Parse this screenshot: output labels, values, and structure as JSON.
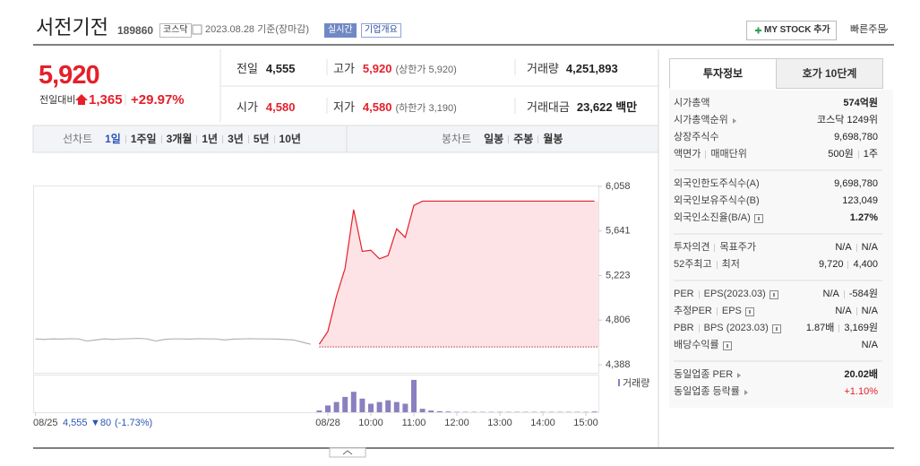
{
  "header": {
    "name": "서전기전",
    "code": "189860",
    "market": "코스닥",
    "date": "2023.08.28 기준(장마감)",
    "realtime": "실시간",
    "overview": "기업개요",
    "mystock": "MY STOCK 추가",
    "quick_order": "빠른주문"
  },
  "price": {
    "current": "5,920",
    "change_label": "전일대비",
    "change": "1,365",
    "change_rate": "+29.97%"
  },
  "summary": {
    "rows": [
      [
        {
          "label": "전일",
          "value": "4,555"
        },
        {
          "label": "고가",
          "value": "5,920",
          "note": "(상한가 5,920)",
          "color": "#e4202b"
        },
        {
          "label": "거래량",
          "value": "4,251,893"
        }
      ],
      [
        {
          "label": "시가",
          "value": "4,580",
          "color": "#e4202b"
        },
        {
          "label": "저가",
          "value": "4,580",
          "note": "(하한가 3,190)",
          "color": "#e4202b"
        },
        {
          "label": "거래대금",
          "value": "23,622 백만"
        }
      ]
    ]
  },
  "tabs": {
    "line_label": "선차트",
    "line": [
      "1일",
      "1주일",
      "3개월",
      "1년",
      "3년",
      "5년",
      "10년"
    ],
    "active": 0,
    "candle_label": "봉차트",
    "candle": [
      "일봉",
      "주봉",
      "월봉"
    ]
  },
  "chart": {
    "type": "line",
    "ylim": [
      4388,
      6058
    ],
    "yticks": [
      {
        "value": 6058,
        "label": "6,058"
      },
      {
        "value": 5641,
        "label": "5,641"
      },
      {
        "value": 5223,
        "label": "5,223"
      },
      {
        "value": 4806,
        "label": "4,806"
      },
      {
        "value": 4388,
        "label": "4,388"
      }
    ],
    "xticks": [
      {
        "value": 0,
        "label": "08/25"
      },
      {
        "value": 34,
        "label": "08/28"
      },
      {
        "value": 39,
        "label": "10:00"
      },
      {
        "value": 44,
        "label": "11:00"
      },
      {
        "value": 49,
        "label": "12:00"
      },
      {
        "value": 54,
        "label": "13:00"
      },
      {
        "value": 59,
        "label": "14:00"
      },
      {
        "value": 64,
        "label": "15:00"
      }
    ],
    "reference": 4555,
    "fill": "#fde3e5",
    "series": [
      {
        "color": "#b4b4b4",
        "values": [
          4630,
          4625,
          4630,
          4628,
          4632,
          4630,
          4610,
          4620,
          4630,
          4625,
          4630,
          4632,
          4635,
          4630,
          4610,
          4625,
          4630,
          4630,
          4628,
          4632,
          4630,
          4630,
          4620,
          4628,
          4630,
          4632,
          4630,
          4630,
          4628,
          4625,
          4620,
          4600,
          4580,
          null,
          null,
          null,
          null,
          null,
          null,
          null,
          null,
          null,
          null,
          null,
          null,
          null,
          null,
          null,
          null,
          null,
          null,
          null,
          null,
          null,
          null,
          null,
          null,
          null,
          null,
          null,
          null,
          null,
          null,
          null,
          null,
          null
        ]
      },
      {
        "color": "#e4202b",
        "values": [
          null,
          null,
          null,
          null,
          null,
          null,
          null,
          null,
          null,
          null,
          null,
          null,
          null,
          null,
          null,
          null,
          null,
          null,
          null,
          null,
          null,
          null,
          null,
          null,
          null,
          null,
          null,
          null,
          null,
          null,
          null,
          null,
          null,
          4580,
          4700,
          5030,
          5290,
          5840,
          5450,
          5460,
          5380,
          5410,
          5660,
          5580,
          5880,
          5920,
          5920,
          5920,
          5920,
          5920,
          5920,
          5920,
          5920,
          5920,
          5920,
          5920,
          5920,
          5920,
          5920,
          5920,
          5920,
          5920,
          5920,
          5920,
          5920,
          5920
        ]
      }
    ],
    "volume": {
      "label": "거래량",
      "color": "#8a7fc0",
      "vlim": [
        0,
        100
      ],
      "values": [
        null,
        null,
        null,
        null,
        null,
        null,
        null,
        null,
        null,
        null,
        null,
        null,
        null,
        null,
        null,
        null,
        null,
        null,
        null,
        null,
        null,
        null,
        null,
        null,
        null,
        null,
        null,
        null,
        null,
        null,
        null,
        null,
        null,
        5,
        20,
        30,
        45,
        60,
        40,
        25,
        30,
        35,
        30,
        25,
        95,
        10,
        5,
        3,
        2,
        1,
        1,
        1,
        1,
        1,
        1,
        1,
        1,
        1,
        1,
        1,
        1,
        1,
        1,
        1,
        1,
        2
      ]
    },
    "prev_summary": {
      "price": "4,555",
      "change": "▼80",
      "rate": "(-1.73%)"
    }
  },
  "info": {
    "tabs": [
      "투자정보",
      "호가 10단계"
    ],
    "active": 0,
    "groups": [
      [
        {
          "label": [
            "시가총액"
          ],
          "value": [
            "574억원"
          ],
          "bold": true
        },
        {
          "label": [
            "시가총액순위"
          ],
          "arrow": true,
          "value": [
            "코스닥 1249위"
          ]
        },
        {
          "label": [
            "상장주식수"
          ],
          "value": [
            "9,698,780"
          ]
        },
        {
          "label": [
            "액면가",
            "매매단위"
          ],
          "value": [
            "500원",
            "1주"
          ]
        }
      ],
      [
        {
          "label": [
            "외국인한도주식수(A)"
          ],
          "value": [
            "9,698,780"
          ]
        },
        {
          "label": [
            "외국인보유주식수(B)"
          ],
          "value": [
            "123,049"
          ]
        },
        {
          "label": [
            "외국인소진율(B/A)"
          ],
          "help": true,
          "value": [
            "1.27%"
          ],
          "bold": true
        }
      ],
      [
        {
          "label": [
            "투자의견",
            "목표주가"
          ],
          "value": [
            "N/A",
            "N/A"
          ]
        },
        {
          "label": [
            "52주최고",
            "최저"
          ],
          "value": [
            "9,720",
            "4,400"
          ]
        }
      ],
      [
        {
          "label": [
            "PER",
            "EPS(2023.03)"
          ],
          "help": true,
          "value": [
            "N/A",
            "-584원"
          ]
        },
        {
          "label": [
            "추정PER",
            "EPS"
          ],
          "help": true,
          "value": [
            "N/A",
            "N/A"
          ]
        },
        {
          "label": [
            "PBR",
            "BPS (2023.03)"
          ],
          "help": true,
          "value": [
            "1.87배",
            "3,169원"
          ]
        },
        {
          "label": [
            "배당수익률"
          ],
          "help": true,
          "value": [
            "N/A"
          ]
        }
      ],
      [
        {
          "label": [
            "동일업종 PER"
          ],
          "arrow": true,
          "value": [
            "20.02배"
          ],
          "bold": true
        },
        {
          "label": [
            "동일업종 등락률"
          ],
          "arrow": true,
          "value": [
            "+1.10%"
          ],
          "color": "#e4202b"
        }
      ]
    ]
  }
}
